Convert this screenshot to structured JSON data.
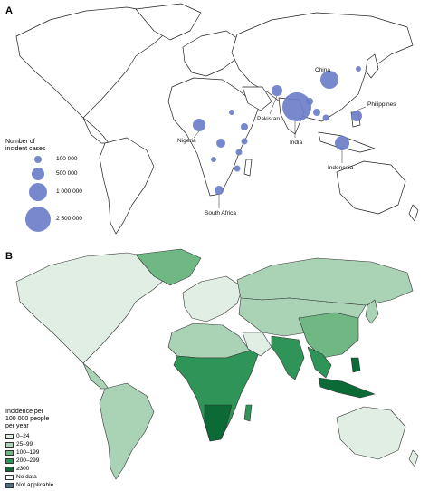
{
  "panel_a": {
    "letter": "A",
    "legend_title": "Number of\nincident cases",
    "legend_items": [
      "100 000",
      "500 000",
      "1 000 000",
      "2 500 000"
    ],
    "bubble_color": "#6b7ec9",
    "labels": {
      "china": "China",
      "philippines": "Philippines",
      "pakistan": "Pakistan",
      "india": "India",
      "nigeria": "Nigeria",
      "indonesia": "Indonesia",
      "south_africa": "South Africa"
    }
  },
  "panel_b": {
    "letter": "B",
    "legend_title": "Incidence per\n100 000 people\nper year",
    "legend_items": [
      {
        "label": "0–24",
        "color": "#e0eee4"
      },
      {
        "label": "25–99",
        "color": "#a9d3b4"
      },
      {
        "label": "100–199",
        "color": "#6fb884"
      },
      {
        "label": "200–299",
        "color": "#2f9457"
      },
      {
        "label": "≥300",
        "color": "#0b6a35"
      },
      {
        "label": "No data",
        "color": "#ffffff"
      },
      {
        "label": "Not applicable",
        "color": "#4f6f86"
      }
    ]
  }
}
